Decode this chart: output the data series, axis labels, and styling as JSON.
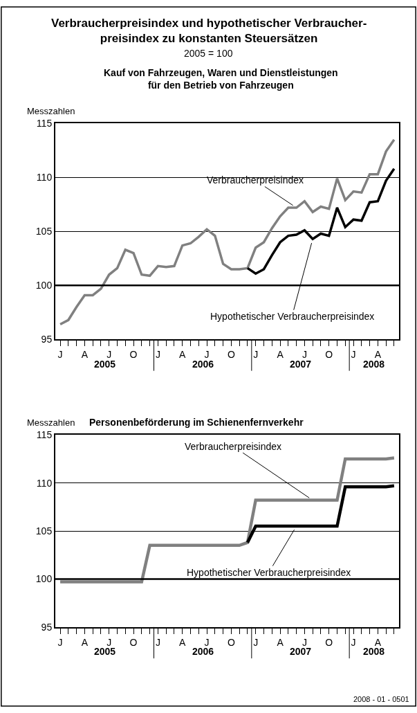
{
  "chart_data": [
    {
      "type": "line",
      "title": "Verbraucherpreisindex und hypothetischer Verbraucher-\npreisindex zu konstanten Steuersätzen",
      "subtitle": "2005 = 100",
      "ylabel": "Messzahlen",
      "annotations": [
        "Kauf von Fahrzeugen, Waren und Dienstleistungen\nfür den Betrieb von Fahrzeugen",
        "2005",
        "2006",
        "2007",
        "2008"
      ],
      "categories": [
        "J",
        null,
        null,
        "A",
        null,
        null,
        "J",
        null,
        null,
        "O",
        null,
        null,
        "J",
        null,
        null,
        "A",
        null,
        null,
        "J",
        null,
        null,
        "O",
        null,
        null,
        "J",
        null,
        null,
        "A",
        null,
        null,
        "J",
        null,
        null,
        "O",
        null,
        null,
        "J",
        null,
        null,
        "A",
        null,
        null
      ],
      "series": [
        {
          "name": "Verbraucherpreisindex",
          "color": "#808080",
          "values": [
            96.4,
            96.8,
            98.0,
            99.1,
            99.1,
            99.7,
            101.0,
            101.6,
            103.3,
            103.0,
            101.0,
            100.9,
            101.8,
            101.7,
            101.8,
            103.7,
            103.9,
            104.5,
            105.2,
            104.6,
            102.0,
            101.5,
            101.5,
            101.6,
            103.5,
            104.0,
            105.3,
            106.4,
            107.2,
            107.2,
            107.8,
            106.8,
            107.3,
            107.1,
            109.9,
            107.9,
            108.7,
            108.6,
            110.3,
            110.3,
            112.4,
            113.5
          ]
        },
        {
          "name": "Hypothetischer Verbraucherpreisindex",
          "color": "#000000",
          "values": [
            null,
            null,
            null,
            null,
            null,
            null,
            null,
            null,
            null,
            null,
            null,
            null,
            null,
            null,
            null,
            null,
            null,
            null,
            null,
            null,
            null,
            null,
            null,
            101.6,
            101.1,
            101.5,
            102.8,
            104.0,
            104.6,
            104.7,
            105.1,
            104.3,
            104.8,
            104.6,
            107.2,
            105.4,
            106.1,
            106.0,
            107.7,
            107.8,
            109.7,
            110.8
          ]
        }
      ],
      "ylim": [
        95,
        115
      ],
      "yticks": [
        95,
        100,
        105,
        110,
        115
      ],
      "grid": "y",
      "marker": "none",
      "line_style": "solid",
      "ref_lines": [
        {
          "axis": "y",
          "value": 100,
          "color": "#000000"
        }
      ]
    },
    {
      "type": "line",
      "title": "Personenbeförderung im Schienenfernverkehr",
      "ylabel": "Messzahlen",
      "annotations": [
        "2005",
        "2006",
        "2007",
        "2008",
        "2008 - 01 - 0501"
      ],
      "categories": [
        "J",
        null,
        null,
        "A",
        null,
        null,
        "J",
        null,
        null,
        "O",
        null,
        null,
        "J",
        null,
        null,
        "A",
        null,
        null,
        "J",
        null,
        null,
        "O",
        null,
        null,
        "J",
        null,
        null,
        "A",
        null,
        null,
        "J",
        null,
        null,
        "O",
        null,
        null,
        "J",
        null,
        null,
        "A",
        null,
        null
      ],
      "series": [
        {
          "name": "Verbraucherpreisindex",
          "color": "#808080",
          "values": [
            99.7,
            99.7,
            99.7,
            99.7,
            99.7,
            99.7,
            99.7,
            99.7,
            99.7,
            99.7,
            99.7,
            103.5,
            103.5,
            103.5,
            103.5,
            103.5,
            103.5,
            103.5,
            103.5,
            103.5,
            103.5,
            103.5,
            103.5,
            103.8,
            108.2,
            108.2,
            108.2,
            108.2,
            108.2,
            108.2,
            108.2,
            108.2,
            108.2,
            108.2,
            108.2,
            112.5,
            112.5,
            112.5,
            112.5,
            112.5,
            112.5,
            112.6
          ]
        },
        {
          "name": "Hypothetischer Verbraucherpreisindex",
          "color": "#000000",
          "values": [
            null,
            null,
            null,
            null,
            null,
            null,
            null,
            null,
            null,
            null,
            null,
            null,
            null,
            null,
            null,
            null,
            null,
            null,
            null,
            null,
            null,
            null,
            null,
            103.8,
            105.5,
            105.5,
            105.5,
            105.5,
            105.5,
            105.5,
            105.5,
            105.5,
            105.5,
            105.5,
            105.5,
            109.6,
            109.6,
            109.6,
            109.6,
            109.6,
            109.6,
            109.7
          ]
        }
      ],
      "ylim": [
        95,
        115
      ],
      "yticks": [
        95,
        100,
        105,
        110,
        115
      ],
      "grid": "y",
      "marker": "none",
      "line_style": "solid",
      "ref_lines": [
        {
          "axis": "y",
          "value": 100,
          "color": "#000000"
        }
      ]
    }
  ]
}
